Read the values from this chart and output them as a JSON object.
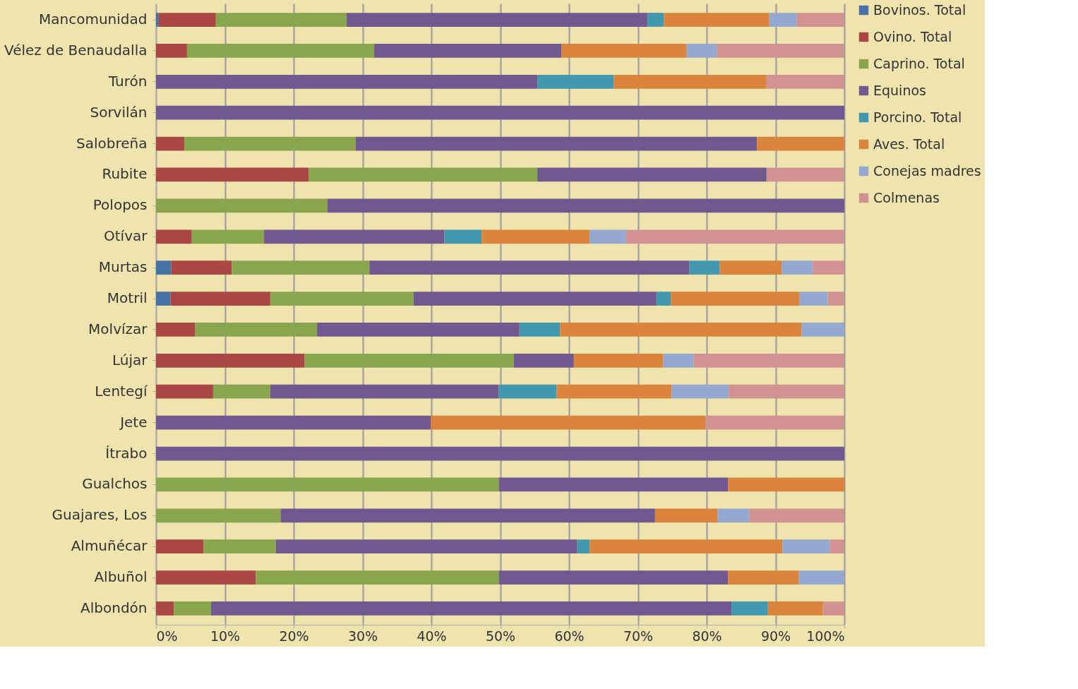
{
  "chart_data": {
    "type": "bar",
    "orientation": "horizontal",
    "stacked": true,
    "categories": [
      "Mancomunidad",
      "Vélez de Benaudalla",
      "Turón",
      "Sorvilán",
      "Salobreña",
      "Rubite",
      "Polopos",
      "Otívar",
      "Murtas",
      "Motril",
      "Molvízar",
      "Lújar",
      "Lentegí",
      "Jete",
      "Ítrabo",
      "Gualchos",
      "Guajares, Los",
      "Almuñécar",
      "Albuñol",
      "Albondón"
    ],
    "series": [
      {
        "name": "Bovinos. Total",
        "color": "#4573a7",
        "values": [
          0.4,
          null,
          null,
          null,
          null,
          null,
          null,
          null,
          2.2,
          2.1,
          null,
          null,
          null,
          null,
          null,
          null,
          null,
          null,
          null,
          null
        ]
      },
      {
        "name": "Ovino. Total",
        "color": "#aa4643",
        "values": [
          8.3,
          4.5,
          null,
          null,
          4.1,
          22.2,
          null,
          5.2,
          8.8,
          14.5,
          5.7,
          21.6,
          8.3,
          null,
          null,
          null,
          null,
          6.9,
          14.5,
          2.6
        ]
      },
      {
        "name": "Caprino. Total",
        "color": "#89a54e",
        "values": [
          19.0,
          27.2,
          null,
          null,
          24.9,
          33.2,
          24.9,
          10.5,
          20.0,
          20.8,
          17.7,
          30.4,
          8.3,
          null,
          null,
          49.8,
          18.1,
          10.5,
          35.3,
          5.4
        ]
      },
      {
        "name": "Equinos",
        "color": "#71588f",
        "values": [
          43.7,
          27.2,
          55.4,
          100,
          58.3,
          33.3,
          75.1,
          26.2,
          46.5,
          35.3,
          29.4,
          8.7,
          33.2,
          39.9,
          100,
          33.3,
          54.4,
          43.8,
          33.3,
          75.6
        ]
      },
      {
        "name": "Porcino. Total",
        "color": "#4198af",
        "values": [
          2.4,
          null,
          11.1,
          null,
          null,
          null,
          null,
          5.4,
          4.4,
          2.1,
          5.9,
          null,
          8.4,
          null,
          null,
          null,
          null,
          1.8,
          null,
          5.3
        ]
      },
      {
        "name": "Aves. Total",
        "color": "#db843d",
        "values": [
          15.3,
          18.2,
          22.2,
          null,
          12.7,
          null,
          null,
          15.7,
          9.0,
          18.7,
          35.1,
          13.0,
          16.7,
          39.9,
          null,
          16.9,
          9.1,
          28.0,
          10.3,
          8.0
        ]
      },
      {
        "name": "Conejas madres",
        "color": "#93a9cf",
        "values": [
          4.0,
          4.4,
          null,
          null,
          null,
          null,
          null,
          5.3,
          4.5,
          4.1,
          6.2,
          4.4,
          8.3,
          null,
          null,
          null,
          4.6,
          6.9,
          6.6,
          null
        ]
      },
      {
        "name": "Colmenas",
        "color": "#d19392",
        "values": [
          6.9,
          18.5,
          11.3,
          null,
          null,
          11.3,
          null,
          31.7,
          4.6,
          2.4,
          null,
          21.9,
          16.8,
          20.2,
          null,
          null,
          13.8,
          2.1,
          null,
          3.1
        ]
      }
    ],
    "xlim": [
      0,
      100
    ],
    "xticks": [
      {
        "value": 0,
        "label": "0%"
      },
      {
        "value": 10,
        "label": "10%"
      },
      {
        "value": 20,
        "label": "20%"
      },
      {
        "value": 30,
        "label": "30%"
      },
      {
        "value": 40,
        "label": "40%"
      },
      {
        "value": 50,
        "label": "50%"
      },
      {
        "value": 60,
        "label": "60%"
      },
      {
        "value": 70,
        "label": "70%"
      },
      {
        "value": 80,
        "label": "80%"
      },
      {
        "value": 90,
        "label": "90%"
      },
      {
        "value": 100,
        "label": "100%"
      }
    ],
    "grid": "x",
    "legend": "right"
  }
}
